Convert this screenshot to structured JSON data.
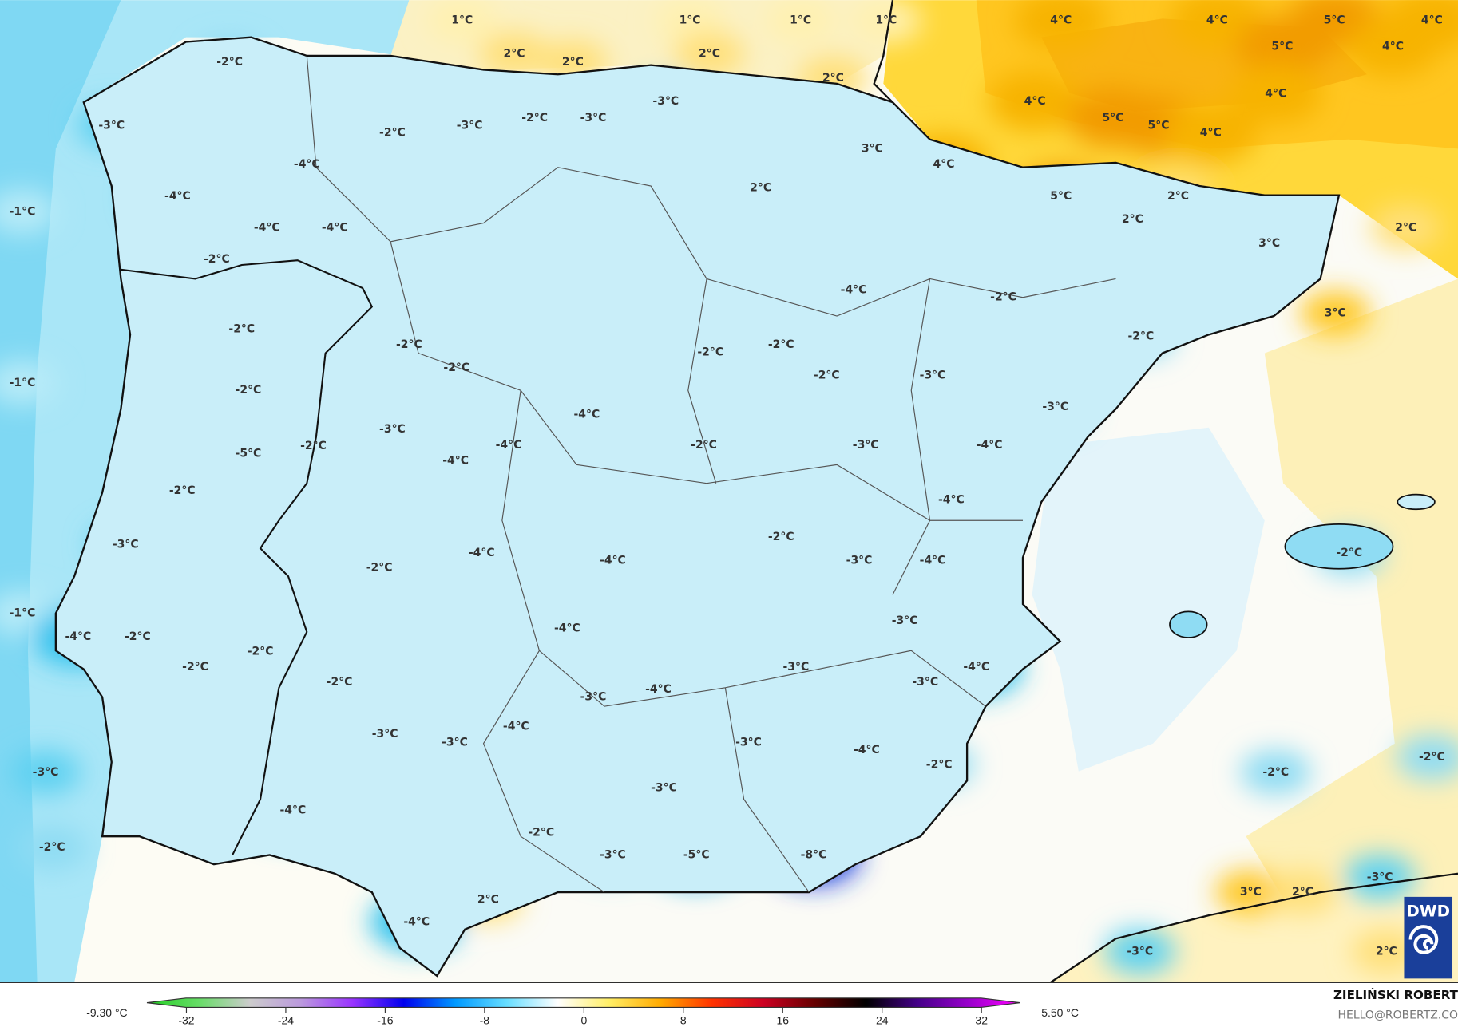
{
  "map": {
    "unit": "°C",
    "labels": [
      "1°C",
      "1°C",
      "1°C",
      "1°C",
      "2°C",
      "2°C",
      "2°C",
      "2°C",
      "4°C",
      "4°C",
      "5°C",
      "4°C",
      "5°C",
      "4°C",
      "4°C",
      "4°C",
      "5°C",
      "5°C",
      "4°C",
      "3°C",
      "4°C",
      "2°C",
      "5°C",
      "2°C",
      "2°C",
      "2°C",
      "3°C",
      "3°C",
      "-2°C",
      "-2°C",
      "-3°C",
      "-3°C",
      "-2°C",
      "-3°C",
      "-3°C",
      "-2°C",
      "-4°C",
      "-4°C",
      "-4°C",
      "-4°C",
      "-1°C",
      "-2°C",
      "-4°C",
      "-2°C",
      "-2°C",
      "-2°C",
      "-2°C",
      "-2°C",
      "-2°C",
      "-2°C",
      "-3°C",
      "-1°C",
      "-2°C",
      "-3°C",
      "-4°C",
      "-3°C",
      "-2°C",
      "-4°C",
      "-2°C",
      "-3°C",
      "-4°C",
      "-5°C",
      "-4°C",
      "-2°C",
      "-4°C",
      "-2°C",
      "-3°C",
      "-4°C",
      "-4°C",
      "-3°C",
      "-4°C",
      "-2°C",
      "-2°C",
      "-1°C",
      "-3°C",
      "-4°C",
      "-4°C",
      "-2°C",
      "-2°C",
      "-2°C",
      "-3°C",
      "-4°C",
      "-2°C",
      "-3°C",
      "-3°C",
      "-4°C",
      "-3°C",
      "-3°C",
      "-4°C",
      "-3°C",
      "-4°C",
      "-3°C",
      "-2°C",
      "-2°C",
      "-2°C",
      "-3°C",
      "-4°C",
      "-2°C",
      "-2°C",
      "-3°C",
      "-5°C",
      "-8°C",
      "-3°C",
      "3°C",
      "2°C",
      "2°C",
      "2°C",
      "-4°C",
      "-3°C",
      "-3°C"
    ]
  },
  "legend": {
    "min_label": "-9.30 °C",
    "max_label": "5.50 °C",
    "ticks": [
      "-32",
      "-24",
      "-16",
      "-8",
      "0",
      "8",
      "16",
      "24",
      "32"
    ],
    "colors": [
      "#22cc22",
      "#66dd66",
      "#cccccc",
      "#bb99dd",
      "#9933ff",
      "#0000ee",
      "#0099ff",
      "#66ddff",
      "#ffffff",
      "#ffee66",
      "#ffaa00",
      "#ff3300",
      "#cc0022",
      "#660000",
      "#000000",
      "#440088",
      "#9900cc",
      "#ff00ff"
    ]
  },
  "logo": {
    "text": "DWD",
    "color": "#1a3f9a"
  },
  "credit": {
    "name": "ZIELIŃSKI ROBERT",
    "email": "HELLO@ROBERTZ.CO"
  }
}
